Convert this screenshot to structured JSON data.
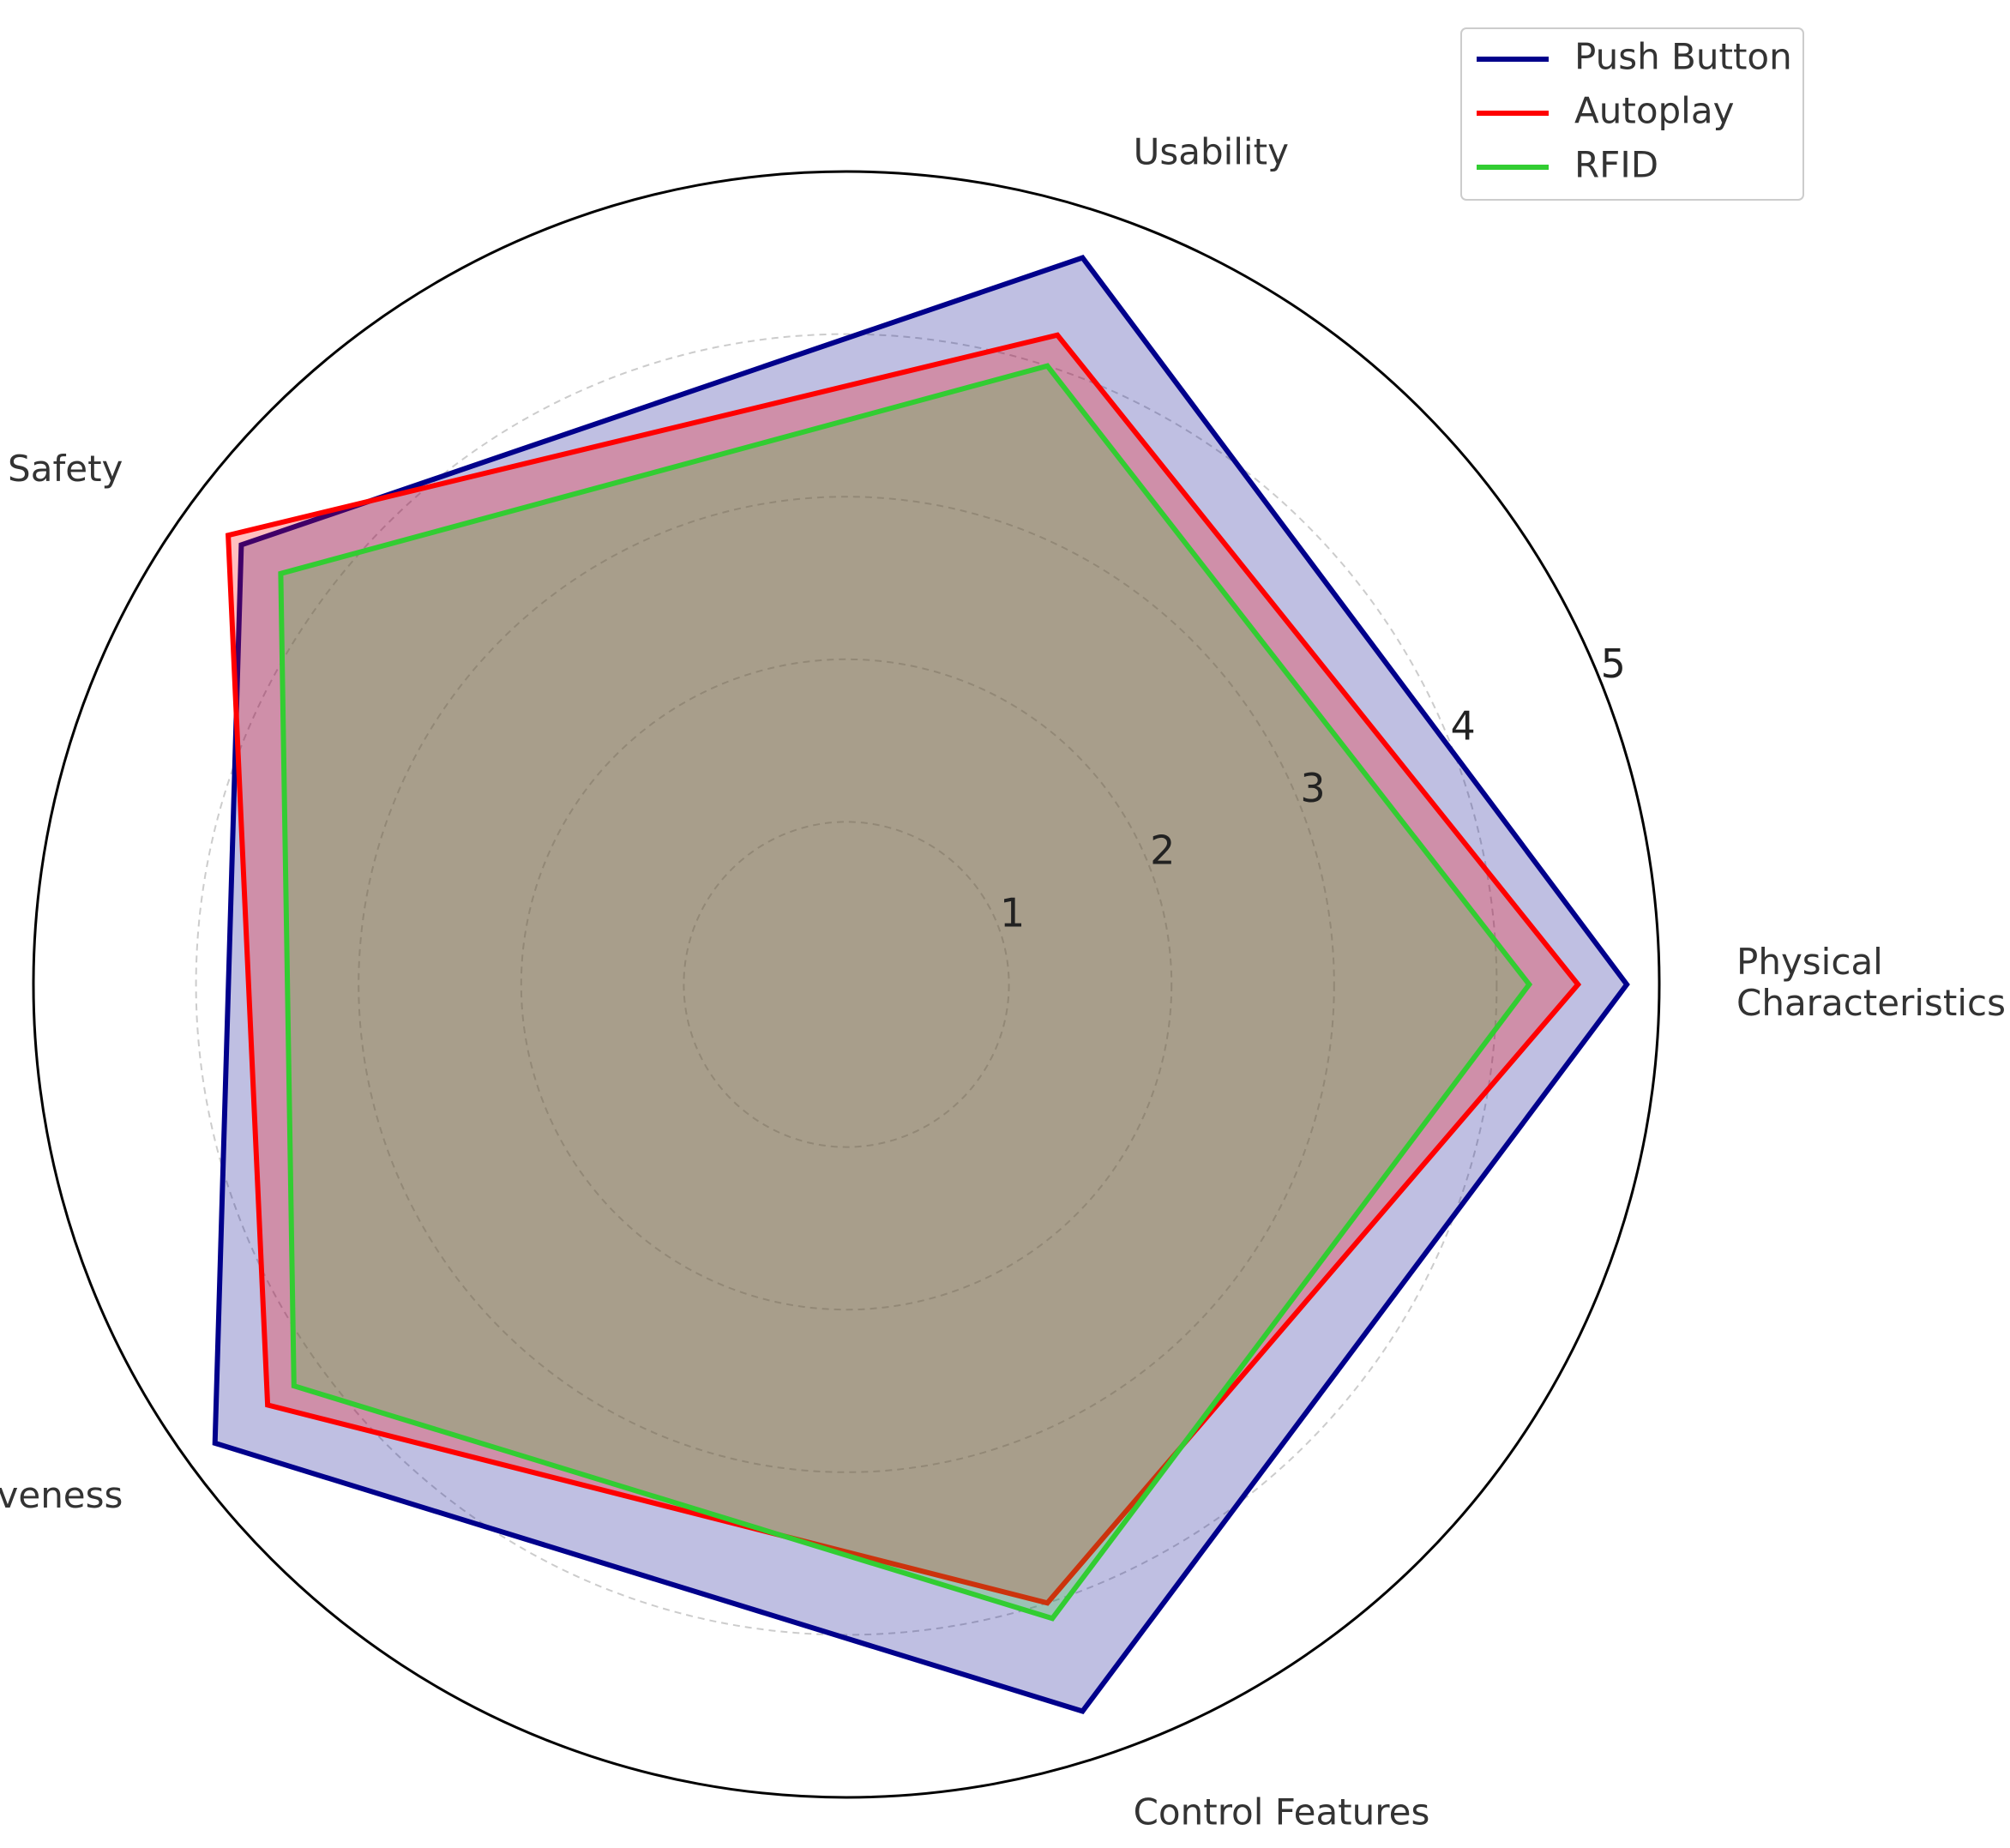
{
  "chart_data": {
    "type": "radar",
    "categories": [
      "Physical\nCharacteristics",
      "Usability",
      "Safety",
      "Effectiveness",
      "Control Features"
    ],
    "series": [
      {
        "name": "Push Button",
        "color": "#00008b",
        "values": [
          4.8,
          4.7,
          4.6,
          4.8,
          4.7
        ]
      },
      {
        "name": "Autoplay",
        "color": "#ff0000",
        "values": [
          4.5,
          4.2,
          4.7,
          4.4,
          4.0
        ]
      },
      {
        "name": "RFID",
        "color": "#32cd32",
        "values": [
          4.2,
          4.0,
          4.3,
          4.2,
          4.1
        ]
      }
    ],
    "ylim": [
      0,
      5
    ],
    "yticks": [
      1,
      2,
      3,
      4,
      5
    ],
    "grid": true,
    "legend": "upper right"
  }
}
